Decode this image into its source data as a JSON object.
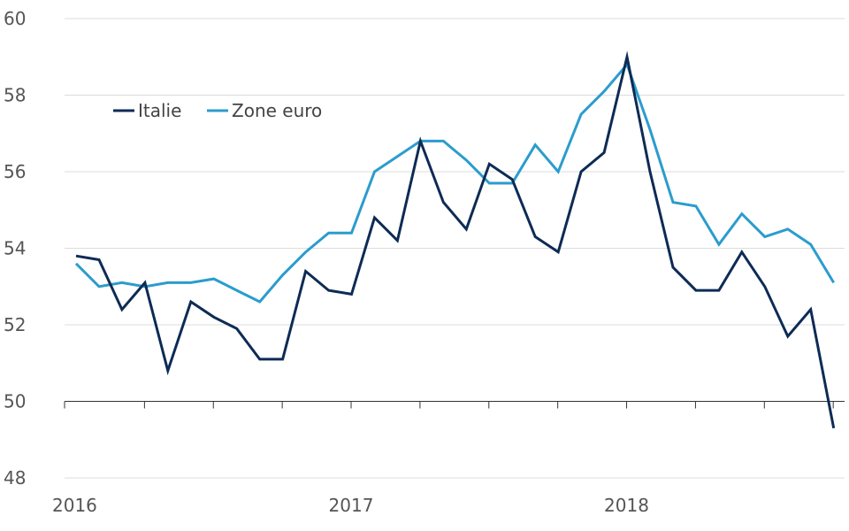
{
  "chart_data": {
    "type": "line",
    "title": "",
    "xlabel": "",
    "ylabel": "",
    "ylim": [
      48,
      60
    ],
    "yticks": [
      48,
      50,
      52,
      54,
      56,
      58,
      60
    ],
    "ytick_labels": [
      "48",
      "50",
      "52",
      "54",
      "56",
      "58",
      "60"
    ],
    "x_axis_at": 50,
    "xtick_labels": [
      {
        "label": "2016",
        "month_index": 0
      },
      {
        "label": "2017",
        "month_index": 12
      },
      {
        "label": "2018",
        "month_index": 24
      }
    ],
    "grid": "horizontal",
    "legend_position": "top-left",
    "series": [
      {
        "name": "Italie",
        "color": "#0d2b55",
        "values": [
          53.8,
          53.7,
          52.4,
          53.1,
          50.8,
          52.6,
          52.2,
          51.9,
          51.1,
          51.1,
          53.4,
          52.9,
          52.8,
          54.8,
          54.2,
          56.8,
          55.2,
          54.5,
          56.2,
          55.8,
          54.3,
          53.9,
          56.0,
          56.5,
          59.0,
          56.0,
          53.5,
          52.9,
          52.9,
          53.9,
          53.0,
          51.7,
          52.4,
          49.3
        ]
      },
      {
        "name": "Zone euro",
        "color": "#2b9ccd",
        "values": [
          53.6,
          53.0,
          53.1,
          53.0,
          53.1,
          53.1,
          53.2,
          52.9,
          52.6,
          53.3,
          53.9,
          54.4,
          54.4,
          56.0,
          56.4,
          56.8,
          56.8,
          56.3,
          55.7,
          55.7,
          56.7,
          56.0,
          57.5,
          58.1,
          58.8,
          57.1,
          55.2,
          55.1,
          54.1,
          54.9,
          54.3,
          54.5,
          54.1,
          53.1
        ]
      }
    ]
  }
}
